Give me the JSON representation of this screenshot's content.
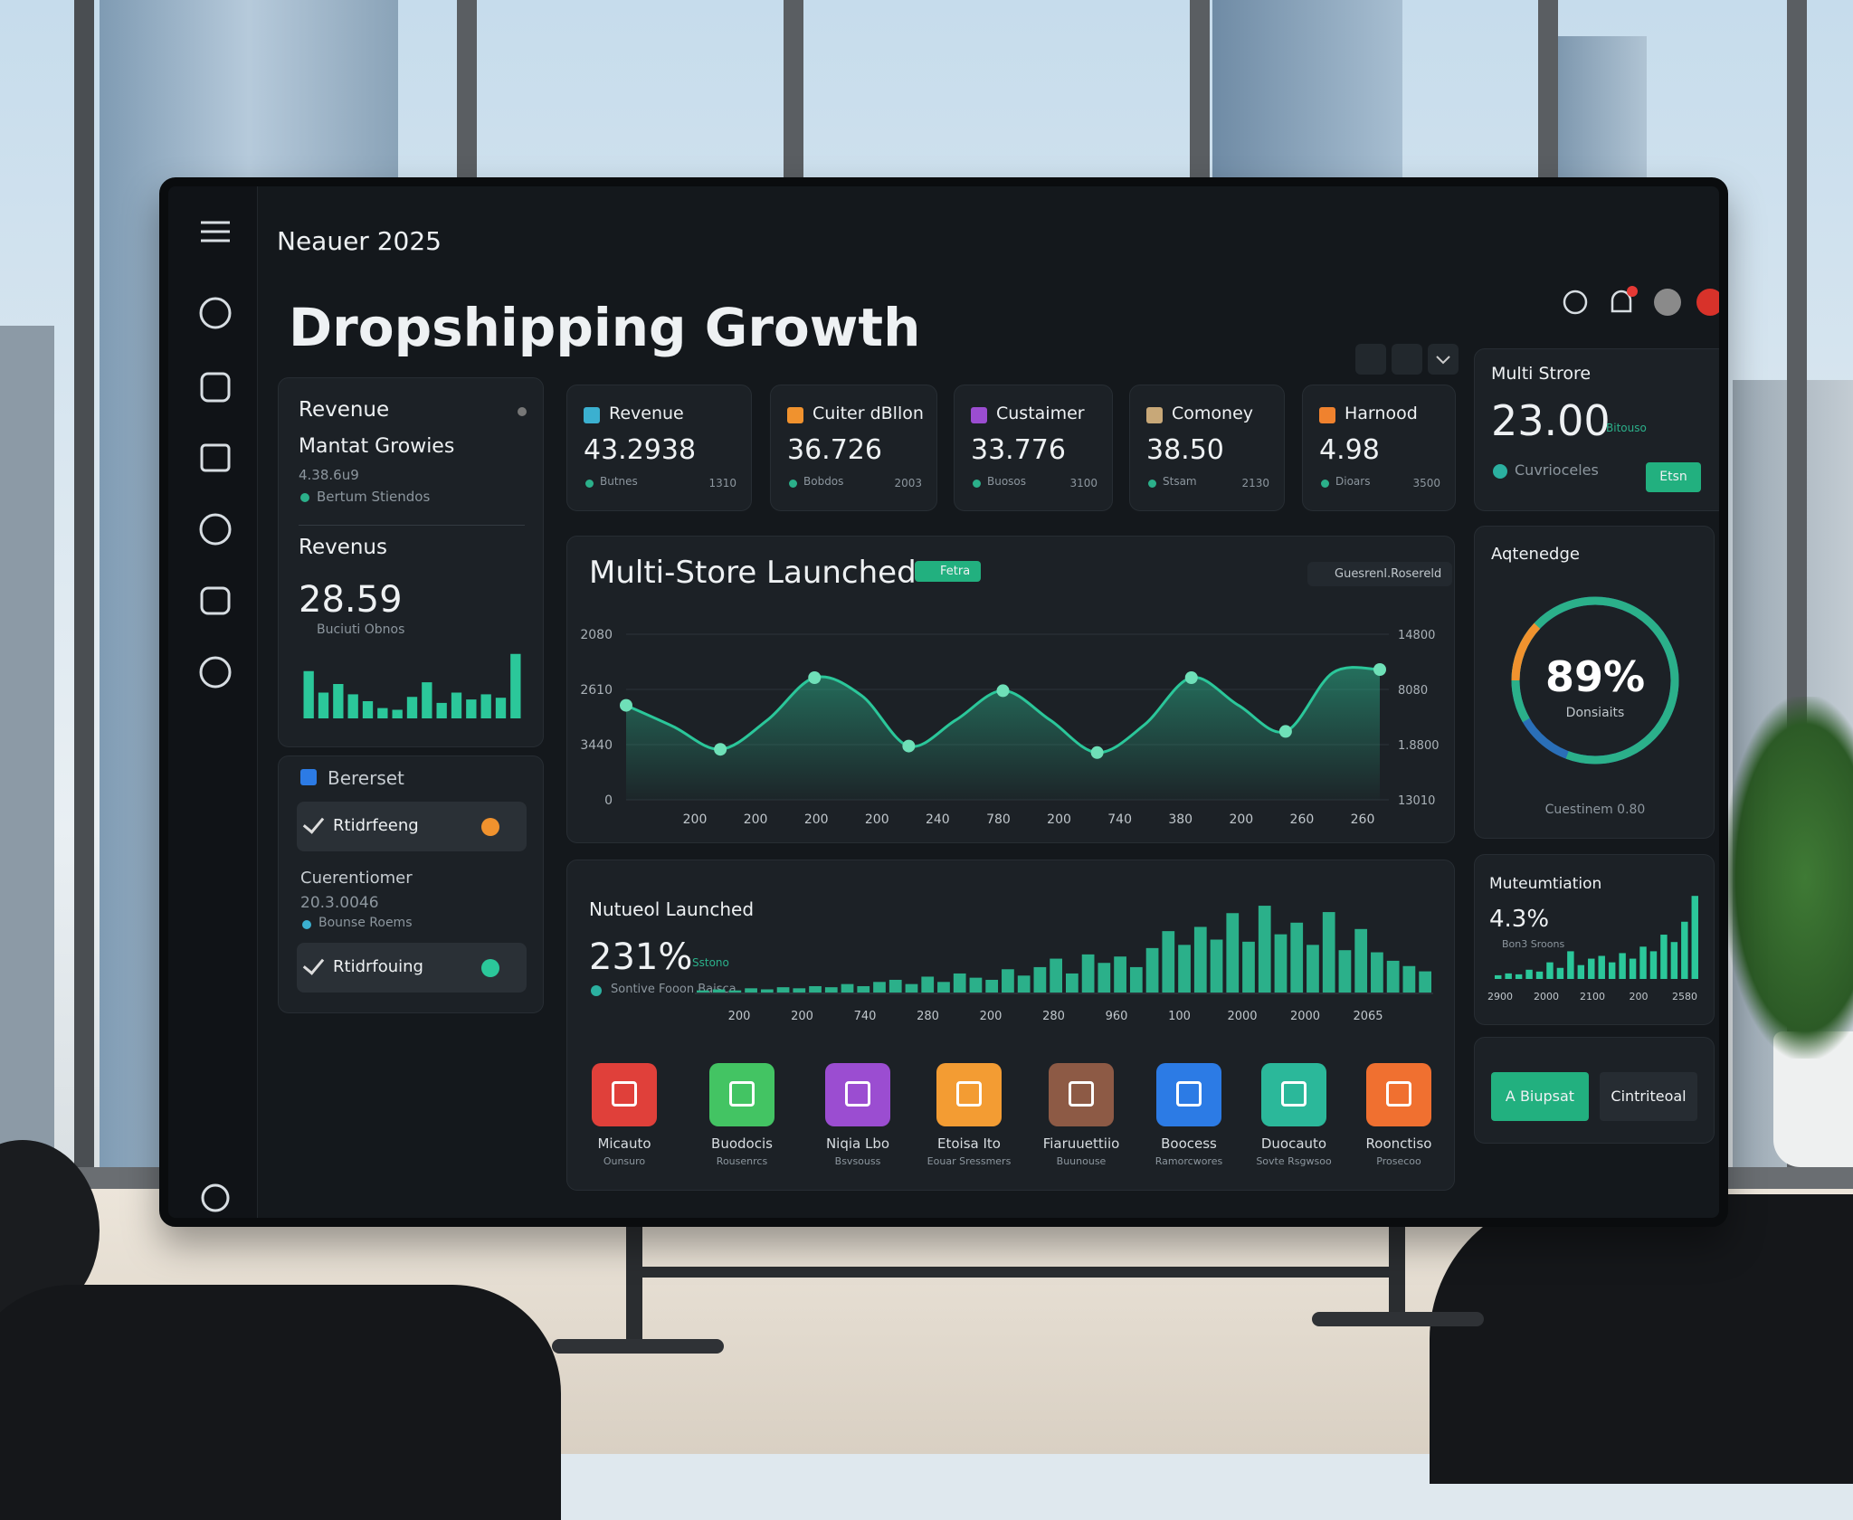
{
  "brand": "Neauer 2025",
  "title": "Dropshipping Growth",
  "overview": {
    "title": "Revenue",
    "subtitle": "Mantat Growies",
    "value": "4.38.6u9",
    "note": "Bertum Stiendos",
    "section": "Revenus",
    "big_value": "28.59",
    "big_note": "Buciuti Obnos",
    "bars": [
      55,
      30,
      40,
      28,
      20,
      12,
      10,
      25,
      42,
      18,
      30,
      22,
      28,
      24,
      75
    ],
    "ylim": [
      0,
      100
    ]
  },
  "tasks": {
    "title": "Bererset",
    "items": [
      "Rtidrfeeng",
      "Rtidrfouing"
    ],
    "subtitle": "Cuerentiomer",
    "value": "20.3.0046",
    "note": "Bounse Roems"
  },
  "kpis": [
    {
      "label": "Revenue",
      "value": "43.2938",
      "note": "Butnes",
      "extra": "1310",
      "color": "#3bb0d0"
    },
    {
      "label": "Cuiter dBllon",
      "value": "36.726",
      "note": "Bobdos",
      "extra": "2003",
      "color": "#f0922e"
    },
    {
      "label": "Custaimer",
      "value": "33.776",
      "note": "Buosos",
      "extra": "3100",
      "color": "#9b4dd1"
    },
    {
      "label": "Comoney",
      "value": "38.50",
      "note": "Stsam",
      "extra": "2130",
      "color": "#c8a878"
    },
    {
      "label": "Harnood",
      "value": "4.98",
      "note": "Dioars",
      "extra": "3500",
      "color": "#f0822e"
    }
  ],
  "multi_store": {
    "title": "Multi Strore",
    "value": "23.00",
    "value_note": "Bitouso",
    "note": "Cuvrioceles",
    "button": "Etsn"
  },
  "line_chart": {
    "title": "Multi-Store Launched",
    "badge": "Fetra",
    "filter": "Guesrenl.Rosereld",
    "y_labels_left": [
      "2080",
      "2610",
      "3440",
      "0"
    ],
    "y_labels_right": [
      "14800",
      "8080",
      "1.8800",
      "13010"
    ],
    "x_labels": [
      "200",
      "200",
      "200",
      "200",
      "240",
      "780",
      "200",
      "740",
      "380",
      "200",
      "260",
      "260"
    ],
    "values": [
      58,
      45,
      31,
      49,
      75,
      64,
      33,
      49,
      67,
      49,
      29,
      46,
      75,
      58,
      42,
      78,
      80
    ],
    "ylim": [
      0,
      100
    ]
  },
  "gauge": {
    "title": "Aqtenedge",
    "value": 89,
    "value_label": "89%",
    "label": "Donsiaits",
    "note": "Cuestinem 0.80"
  },
  "bar_chart": {
    "title": "Nutueol Launched",
    "value": "231%",
    "value_note": "Sstono",
    "note": "Sontive Fooon Baisca",
    "x_labels": [
      "200",
      "200",
      "740",
      "280",
      "200",
      "280",
      "960",
      "100",
      "2000",
      "2000",
      "2065"
    ],
    "values": [
      2,
      3,
      2,
      4,
      3,
      5,
      4,
      6,
      5,
      8,
      6,
      10,
      12,
      8,
      15,
      10,
      18,
      14,
      12,
      22,
      16,
      24,
      32,
      18,
      36,
      28,
      34,
      24,
      42,
      58,
      45,
      62,
      50,
      75,
      48,
      82,
      55,
      66,
      45,
      76,
      40,
      60,
      38,
      30,
      25,
      20
    ],
    "ylim": [
      0,
      100
    ]
  },
  "apps": [
    {
      "label": "Micauto",
      "sublabel": "Ounsuro",
      "color": "#e0403a"
    },
    {
      "label": "Buodocis",
      "sublabel": "Rousenrcs",
      "color": "#43c463"
    },
    {
      "label": "Niqia Lbo",
      "sublabel": "Bsvsouss",
      "color": "#9b4dd1"
    },
    {
      "label": "Etoisa Ito",
      "sublabel": "Eouar Sressmers",
      "color": "#f39c33"
    },
    {
      "label": "Fiaruuettiio",
      "sublabel": "Buunouse",
      "color": "#8d5a45"
    },
    {
      "label": "Boocess",
      "sublabel": "Ramorcwores",
      "color": "#2c7be5"
    },
    {
      "label": "Duocauto",
      "sublabel": "Sovte Rsgwsoo",
      "color": "#2bb89a"
    },
    {
      "label": "Roonctiso",
      "sublabel": "Prosecoo",
      "color": "#f07030"
    }
  ],
  "mini_chart": {
    "title": "Muteumtiation",
    "value": "4.3%",
    "note": "Bon3 Sroons",
    "x_labels": [
      "2900",
      "2000",
      "2100",
      "200",
      "2580"
    ],
    "values": [
      4,
      6,
      5,
      10,
      8,
      18,
      12,
      30,
      15,
      22,
      25,
      18,
      28,
      22,
      35,
      30,
      48,
      40,
      62,
      90
    ],
    "ylim": [
      0,
      100
    ]
  },
  "actions": [
    "A Biupsat",
    "Cintriteoal"
  ]
}
